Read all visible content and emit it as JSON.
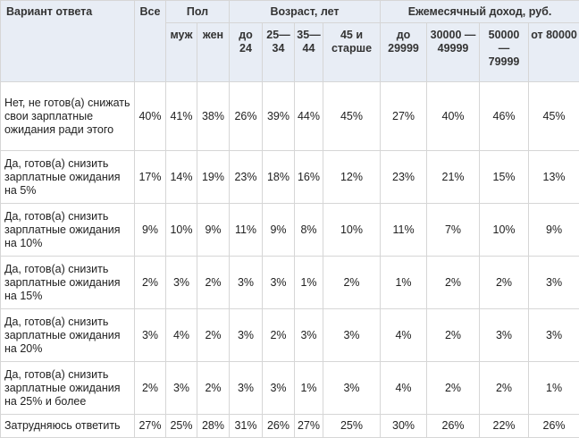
{
  "header": {
    "answer_col": "Вариант ответа",
    "all_col": "Все",
    "groups": [
      {
        "label": "Пол",
        "sub": [
          "муж",
          "жен"
        ]
      },
      {
        "label": "Возраст, лет",
        "sub": [
          "до 24",
          "25— 34",
          "35— 44",
          "45 и старше"
        ]
      },
      {
        "label": "Ежемесячный доход, руб.",
        "sub": [
          "до 29999",
          "30000 — 49999",
          "50000 — 79999",
          "от 80000"
        ]
      }
    ]
  },
  "rows": [
    {
      "label": "Нет, не готов(а) снижать свои зарплатные ожидания ради этого",
      "values": [
        "40%",
        "41%",
        "38%",
        "26%",
        "39%",
        "44%",
        "45%",
        "27%",
        "40%",
        "46%",
        "45%"
      ]
    },
    {
      "label": "Да, готов(а) снизить зарплатные ожидания на 5%",
      "values": [
        "17%",
        "14%",
        "19%",
        "23%",
        "18%",
        "16%",
        "12%",
        "23%",
        "21%",
        "15%",
        "13%"
      ]
    },
    {
      "label": "Да, готов(а) снизить зарплатные ожидания на 10%",
      "values": [
        "9%",
        "10%",
        "9%",
        "11%",
        "9%",
        "8%",
        "10%",
        "11%",
        "7%",
        "10%",
        "9%"
      ]
    },
    {
      "label": "Да, готов(а) снизить зарплатные ожидания на 15%",
      "values": [
        "2%",
        "3%",
        "2%",
        "3%",
        "3%",
        "1%",
        "2%",
        "1%",
        "2%",
        "2%",
        "3%"
      ]
    },
    {
      "label": "Да, готов(а) снизить зарплатные ожидания на 20%",
      "values": [
        "3%",
        "4%",
        "2%",
        "3%",
        "2%",
        "3%",
        "3%",
        "4%",
        "2%",
        "3%",
        "3%"
      ]
    },
    {
      "label": "Да, готов(а) снизить зарплатные ожидания на 25% и более",
      "values": [
        "2%",
        "3%",
        "2%",
        "3%",
        "3%",
        "1%",
        "3%",
        "4%",
        "2%",
        "2%",
        "1%"
      ]
    },
    {
      "label": "Затрудняюсь ответить",
      "values": [
        "27%",
        "25%",
        "28%",
        "31%",
        "26%",
        "27%",
        "25%",
        "30%",
        "26%",
        "22%",
        "26%"
      ]
    }
  ]
}
